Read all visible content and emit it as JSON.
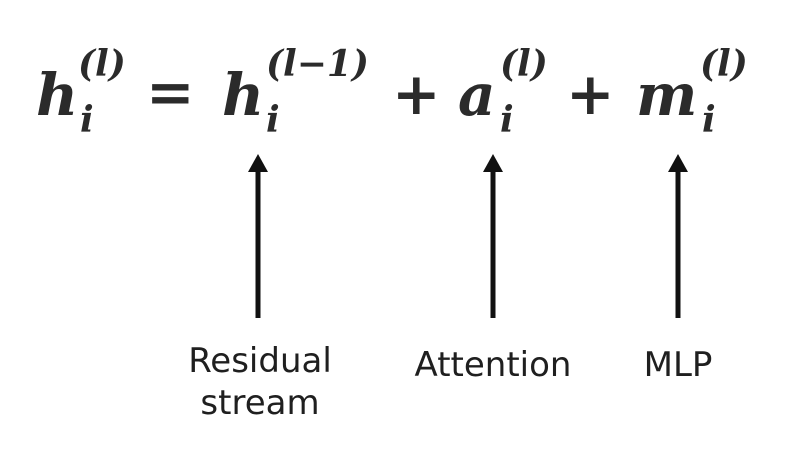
{
  "equation": {
    "lhs_base": "h",
    "lhs_sup": "(l)",
    "lhs_sub": "i",
    "equals": "=",
    "term1_base": "h",
    "term1_sup": "(l−1)",
    "term1_sub": "i",
    "plus1": "+",
    "term2_base": "a",
    "term2_sup": "(l)",
    "term2_sub": "i",
    "plus2": "+",
    "term3_base": "m",
    "term3_sup": "(l)",
    "term3_sub": "i"
  },
  "labels": {
    "residual_line1": "Residual",
    "residual_line2": "stream",
    "attention": "Attention",
    "mlp": "MLP"
  },
  "colors": {
    "ink": "#1a1a1a",
    "background": "#ffffff"
  }
}
